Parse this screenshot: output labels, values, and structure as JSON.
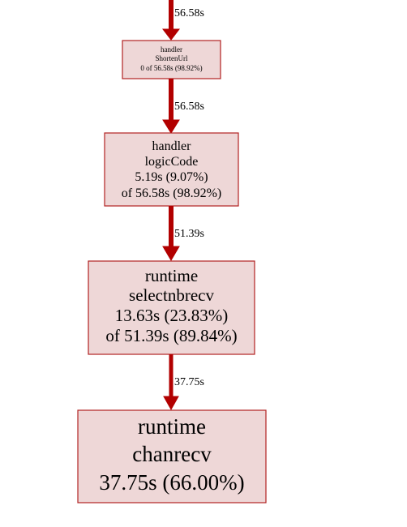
{
  "colors": {
    "node_fill": "#eed7d7",
    "node_border": "#b22222",
    "edge": "#b20000"
  },
  "edges": [
    {
      "id": "incoming",
      "label": "56.58s"
    },
    {
      "id": "shortenurl-to-logiccode",
      "label": "56.58s"
    },
    {
      "id": "logiccode-to-selectnbrecv",
      "label": "51.39s"
    },
    {
      "id": "selectnbrecv-to-chanrecv",
      "label": "37.75s"
    }
  ],
  "nodes": [
    {
      "id": "shortenurl",
      "lines": [
        "handler",
        "ShortenUrl",
        "0 of 56.58s (98.92%)"
      ]
    },
    {
      "id": "logiccode",
      "lines": [
        "handler",
        "logicCode",
        "5.19s (9.07%)",
        "of 56.58s (98.92%)"
      ]
    },
    {
      "id": "selectnbrecv",
      "lines": [
        "runtime",
        "selectnbrecv",
        "13.63s (23.83%)",
        "of 51.39s (89.84%)"
      ]
    },
    {
      "id": "chanrecv",
      "lines": [
        "runtime",
        "chanrecv",
        "37.75s (66.00%)"
      ]
    }
  ]
}
